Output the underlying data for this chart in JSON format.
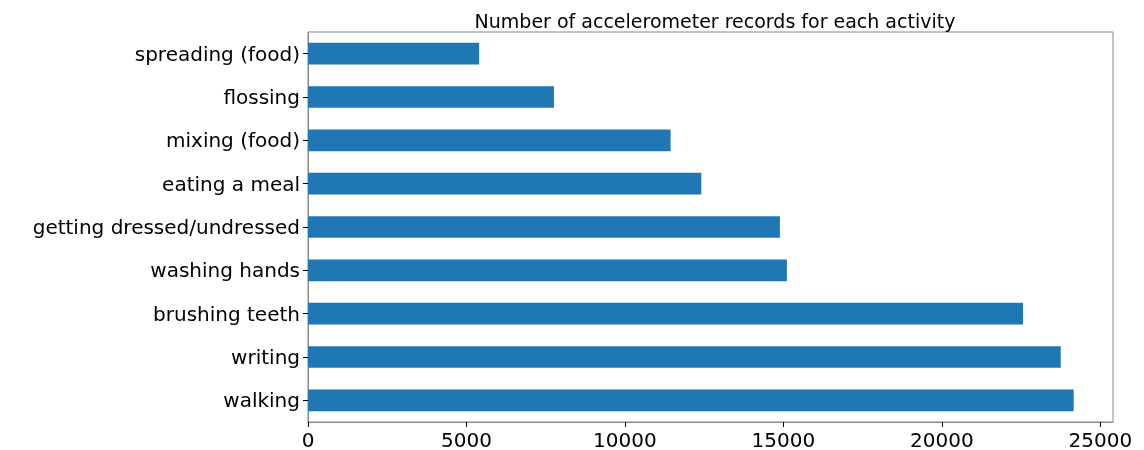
{
  "chart_data": {
    "type": "bar",
    "orientation": "horizontal",
    "title": "Number of accelerometer records for each activity",
    "categories": [
      "spreading (food)",
      "flossing",
      "mixing (food)",
      "eating a meal",
      "getting dressed/undressed",
      "washing hands",
      "brushing teeth",
      "writing",
      "walking"
    ],
    "values": [
      5400,
      7760,
      11440,
      12410,
      14890,
      15110,
      22560,
      23750,
      24160
    ],
    "color": "#1f77b4",
    "xlim": [
      0,
      25400
    ],
    "xticks": [
      0,
      5000,
      10000,
      15000,
      20000,
      25000
    ],
    "grid": false
  }
}
